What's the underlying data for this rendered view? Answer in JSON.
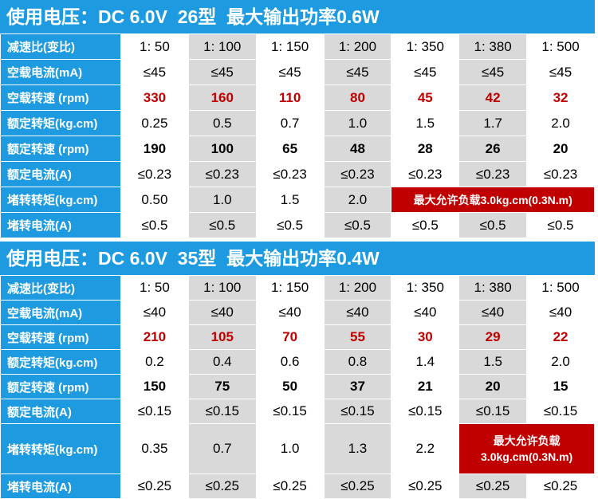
{
  "sections": [
    {
      "title": "使用电压：DC 6.0V  26型  最大输出功率0.6W",
      "rows": [
        {
          "label": "减速比(变比)",
          "cells": [
            "1: 50",
            "1: 100",
            "1: 150",
            "1: 200",
            "1: 350",
            "1: 380",
            "1: 500"
          ]
        },
        {
          "label": "空载电流(mA)",
          "cells": [
            "≤45",
            "≤45",
            "≤45",
            "≤45",
            "≤45",
            "≤45",
            "≤45"
          ]
        },
        {
          "label": "空载转速 (rpm)",
          "cells": [
            "330",
            "160",
            "110",
            "80",
            "45",
            "42",
            "32"
          ],
          "bold": true,
          "color": "#c00000"
        },
        {
          "label": "额定转矩(kg.cm)",
          "cells": [
            "0.25",
            "0.5",
            "0.7",
            "1.0",
            "1.5",
            "1.7",
            "2.0"
          ]
        },
        {
          "label": "额定转速 (rpm)",
          "cells": [
            "190",
            "100",
            "65",
            "48",
            "28",
            "26",
            "20"
          ],
          "bold": true,
          "color": "#000000"
        },
        {
          "label": "额定电流(A)",
          "cells": [
            "≤0.23",
            "≤0.23",
            "≤0.23",
            "≤0.23",
            "≤0.23",
            "≤0.23",
            "≤0.23"
          ]
        },
        {
          "label": "堵转转矩(kg.cm)",
          "cells": [
            "0.50",
            "1.0",
            "1.5",
            "2.0"
          ],
          "note": [
            "最大允许负载3.0kg.cm(0.3N.m)"
          ]
        },
        {
          "label": "堵转电流(A)",
          "cells": [
            "≤0.5",
            "≤0.5",
            "≤0.5",
            "≤0.5",
            "≤0.5",
            "≤0.5",
            "≤0.5"
          ]
        }
      ]
    },
    {
      "title": "使用电压：DC 6.0V  35型  最大输出功率0.4W",
      "rows": [
        {
          "label": "减速比(变比)",
          "cells": [
            "1: 50",
            "1: 100",
            "1: 150",
            "1: 200",
            "1: 350",
            "1: 380",
            "1: 500"
          ]
        },
        {
          "label": "空载电流(mA)",
          "cells": [
            "≤40",
            "≤40",
            "≤40",
            "≤40",
            "≤40",
            "≤40",
            "≤40"
          ]
        },
        {
          "label": "空载转速 (rpm)",
          "cells": [
            "210",
            "105",
            "70",
            "55",
            "30",
            "29",
            "22"
          ],
          "bold": true,
          "color": "#c00000"
        },
        {
          "label": "额定转矩(kg.cm)",
          "cells": [
            "0.2",
            "0.4",
            "0.6",
            "0.8",
            "1.4",
            "1.5",
            "2.0"
          ]
        },
        {
          "label": "额定转速 (rpm)",
          "cells": [
            "150",
            "75",
            "50",
            "37",
            "21",
            "20",
            "15"
          ],
          "bold": true,
          "color": "#000000"
        },
        {
          "label": "额定电流(A)",
          "cells": [
            "≤0.15",
            "≤0.15",
            "≤0.15",
            "≤0.15",
            "≤0.15",
            "≤0.15",
            "≤0.15"
          ]
        },
        {
          "label": "堵转转矩(kg.cm)",
          "cells": [
            "0.35",
            "0.7",
            "1.0",
            "1.3",
            "2.2"
          ],
          "note": [
            "最大允许负载",
            "3.0kg.cm(0.3N.m)"
          ]
        },
        {
          "label": "堵转电流(A)",
          "cells": [
            "≤0.25",
            "≤0.25",
            "≤0.25",
            "≤0.25",
            "≤0.25",
            "≤0.25",
            "≤0.25"
          ]
        }
      ]
    }
  ]
}
